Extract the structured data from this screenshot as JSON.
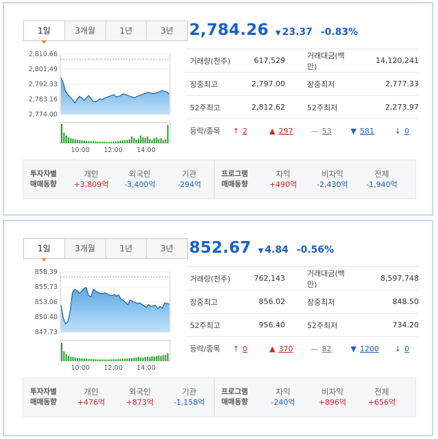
{
  "tabs": [
    "1일",
    "3개월",
    "1년",
    "3년"
  ],
  "indices": [
    {
      "price": "2,784.26",
      "change": "23.37",
      "change_pct": "-0.83%",
      "direction": "down",
      "stats": [
        {
          "label": "거래량(천주)",
          "value": "617,529",
          "label2": "거래대금(백만)",
          "value2": "14,120,241"
        },
        {
          "label": "장중최고",
          "value": "2,797.00",
          "label2": "장중최저",
          "value2": "2,777.33"
        },
        {
          "label": "52주최고",
          "value": "2,812.62",
          "label2": "52주최저",
          "value2": "2,273.97"
        }
      ],
      "breadth_label": "등락/종목",
      "breadth": {
        "upper_limit": "2",
        "up": "297",
        "flat": "53",
        "down": "581",
        "lower_limit": "0"
      },
      "flows": {
        "title1": [
          "투자자별",
          "매매동향"
        ],
        "investors": [
          {
            "label": "개인",
            "value": "+3,809억",
            "sign": "pos"
          },
          {
            "label": "외국인",
            "value": "-3,400억",
            "sign": "neg"
          },
          {
            "label": "기관",
            "value": "-294억",
            "sign": "neg"
          }
        ],
        "title2": [
          "프로그램",
          "매매동향"
        ],
        "program": [
          {
            "label": "차익",
            "value": "+490억",
            "sign": "pos"
          },
          {
            "label": "비차익",
            "value": "-2,430억",
            "sign": "neg"
          },
          {
            "label": "전체",
            "value": "-1,940억",
            "sign": "neg"
          }
        ]
      },
      "chart_data": {
        "type": "area",
        "y_ticks": [
          "2,810.66",
          "2,801.49",
          "2,792.33",
          "2,783.16",
          "2,774.00"
        ],
        "ylim": [
          2774.0,
          2810.66
        ],
        "x_ticks": [
          "10:00",
          "12:00",
          "14:00"
        ],
        "prev_close": 2807.63,
        "values": [
          2796.5,
          2793,
          2788,
          2786,
          2784.5,
          2783,
          2781,
          2783,
          2785,
          2784,
          2782.5,
          2784,
          2785.5,
          2783.5,
          2782,
          2781.5,
          2782.5,
          2783.5,
          2783,
          2784,
          2784.5,
          2785,
          2785.5,
          2786,
          2784.5,
          2785,
          2785.5,
          2786.5,
          2786,
          2785.5,
          2785,
          2784.5,
          2784,
          2785,
          2785.5,
          2786,
          2786.5,
          2787,
          2787.5,
          2787,
          2786.5,
          2787,
          2787.5,
          2788,
          2788.5,
          2788,
          2787.5,
          2786.5
        ],
        "volume": [
          1.0,
          0.55,
          0.4,
          0.3,
          0.25,
          0.22,
          0.2,
          0.18,
          0.16,
          0.14,
          0.13,
          0.12,
          0.11,
          0.1,
          0.1,
          0.09,
          0.08,
          0.08,
          0.07,
          0.07,
          0.06,
          0.06,
          0.07,
          0.08,
          0.09,
          0.1,
          0.12,
          0.14,
          0.15,
          0.16,
          0.2,
          0.35,
          0.25,
          0.18,
          0.22,
          0.4,
          0.3,
          0.28,
          0.35,
          0.2,
          0.15,
          0.25,
          0.3,
          0.2,
          0.25,
          0.15,
          0.2,
          0.95
        ]
      }
    },
    {
      "price": "852.67",
      "change": "4.84",
      "change_pct": "-0.56%",
      "direction": "down",
      "stats": [
        {
          "label": "거래량(천주)",
          "value": "762,143",
          "label2": "거래대금(백만)",
          "value2": "8,597,748"
        },
        {
          "label": "장중최고",
          "value": "856.02",
          "label2": "장중최저",
          "value2": "848.50"
        },
        {
          "label": "52주최고",
          "value": "956.40",
          "label2": "52주최저",
          "value2": "734.20"
        }
      ],
      "breadth_label": "등락/종목",
      "breadth": {
        "upper_limit": "0",
        "up": "370",
        "flat": "82",
        "down": "1200",
        "lower_limit": "0"
      },
      "flows": {
        "title1": [
          "투자자별",
          "매매동향"
        ],
        "investors": [
          {
            "label": "개인",
            "value": "+476억",
            "sign": "pos"
          },
          {
            "label": "외국인",
            "value": "+873억",
            "sign": "pos"
          },
          {
            "label": "기관",
            "value": "-1,158억",
            "sign": "neg"
          }
        ],
        "title2": [
          "프로그램",
          "매매동향"
        ],
        "program": [
          {
            "label": "차익",
            "value": "-240억",
            "sign": "neg"
          },
          {
            "label": "비차익",
            "value": "+896억",
            "sign": "pos"
          },
          {
            "label": "전체",
            "value": "+656억",
            "sign": "pos"
          }
        ]
      },
      "chart_data": {
        "type": "area",
        "y_ticks": [
          "858.39",
          "855.73",
          "853.06",
          "850.40",
          "847.73"
        ],
        "ylim": [
          847.73,
          858.39
        ],
        "x_ticks": [
          "10:00",
          "12:00",
          "14:00"
        ],
        "prev_close": 857.51,
        "values": [
          852.5,
          850.2,
          849.2,
          849.6,
          851.5,
          854.8,
          855.3,
          855.1,
          854.6,
          855.0,
          855.5,
          855.6,
          854.2,
          854.0,
          855.3,
          855.0,
          854.8,
          854.6,
          854.5,
          854.7,
          854.5,
          854.3,
          854.2,
          854.4,
          854.1,
          854.3,
          853.6,
          853.4,
          853.0,
          852.6,
          853.4,
          853.2,
          853.0,
          852.8,
          852.9,
          852.7,
          852.4,
          852.1,
          852.6,
          852.3,
          852.4,
          852.5,
          851.9,
          852.3,
          852.0,
          852.9,
          852.8,
          852.7
        ],
        "volume": [
          0.95,
          0.5,
          0.35,
          0.28,
          0.22,
          0.2,
          0.17,
          0.15,
          0.14,
          0.13,
          0.12,
          0.11,
          0.1,
          0.1,
          0.09,
          0.09,
          0.08,
          0.08,
          0.08,
          0.07,
          0.07,
          0.08,
          0.08,
          0.09,
          0.09,
          0.1,
          0.1,
          0.11,
          0.12,
          0.13,
          0.14,
          0.15,
          0.16,
          0.18,
          0.2,
          0.18,
          0.17,
          0.2,
          0.22,
          0.2,
          0.24,
          0.22,
          0.25,
          0.28,
          0.26,
          0.3,
          0.32,
          0.4
        ]
      }
    }
  ]
}
